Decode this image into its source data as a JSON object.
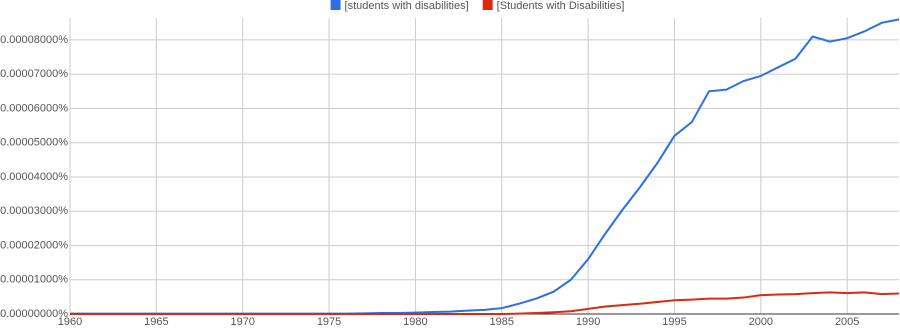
{
  "chart_data": {
    "type": "line",
    "x": [
      1960,
      1961,
      1962,
      1963,
      1964,
      1965,
      1966,
      1967,
      1968,
      1969,
      1970,
      1971,
      1972,
      1973,
      1974,
      1975,
      1976,
      1977,
      1978,
      1979,
      1980,
      1981,
      1982,
      1983,
      1984,
      1985,
      1986,
      1987,
      1988,
      1989,
      1990,
      1991,
      1992,
      1993,
      1994,
      1995,
      1996,
      1997,
      1998,
      1999,
      2000,
      2001,
      2002,
      2003,
      2004,
      2005,
      2006,
      2007,
      2008
    ],
    "series": [
      {
        "name": "[students with disabilities]",
        "color": "#2c6fe8",
        "values": [
          1e-07,
          1e-07,
          1e-07,
          1e-07,
          1e-07,
          1e-07,
          1e-07,
          1e-07,
          1e-07,
          1e-07,
          1e-07,
          1e-07,
          1e-07,
          1e-07,
          1e-07,
          1e-07,
          1e-07,
          2e-07,
          3e-07,
          3e-07,
          4e-07,
          6e-07,
          7e-07,
          1e-06,
          1.2e-06,
          1.7e-06,
          3e-06,
          4.5e-06,
          6.5e-06,
          1e-05,
          1.6e-05,
          2.35e-05,
          3.05e-05,
          3.7e-05,
          4.4e-05,
          5.2e-05,
          5.6e-05,
          6.5e-05,
          6.55e-05,
          6.8e-05,
          6.95e-05,
          7.2e-05,
          7.45e-05,
          8.1e-05,
          7.95e-05,
          8.05e-05,
          8.25e-05,
          8.5e-05,
          8.6e-05
        ]
      },
      {
        "name": "[Students with Disabilities]",
        "color": "#dc2a10",
        "values": [
          0,
          0,
          0,
          0,
          0,
          0,
          0,
          0,
          0,
          0,
          0,
          0,
          0,
          0,
          0,
          0,
          0,
          0,
          0,
          0,
          0,
          0,
          0,
          0,
          0,
          0,
          1e-07,
          3e-07,
          5e-07,
          8e-07,
          1.5e-06,
          2.2e-06,
          2.6e-06,
          3e-06,
          3.5e-06,
          4e-06,
          4.2e-06,
          4.5e-06,
          4.5e-06,
          4.8e-06,
          5.5e-06,
          5.7e-06,
          5.8e-06,
          6.1e-06,
          6.3e-06,
          6.1e-06,
          6.3e-06,
          5.8e-06,
          6e-06
        ]
      }
    ],
    "xlim": [
      1960,
      2008
    ],
    "xticks": [
      1960,
      1965,
      1970,
      1975,
      1980,
      1985,
      1990,
      1995,
      2000,
      2005
    ],
    "ylim": [
      0,
      8.64e-05
    ],
    "yticks": [
      {
        "value": 0,
        "label": "0.00000000%"
      },
      {
        "value": 1e-05,
        "label": "0.00001000%"
      },
      {
        "value": 2e-05,
        "label": "0.00002000%"
      },
      {
        "value": 3e-05,
        "label": "0.00003000%"
      },
      {
        "value": 4e-05,
        "label": "0.00004000%"
      },
      {
        "value": 5e-05,
        "label": "0.00005000%"
      },
      {
        "value": 6e-05,
        "label": "0.00006000%"
      },
      {
        "value": 7e-05,
        "label": "0.00007000%"
      },
      {
        "value": 8e-05,
        "label": "0.00008000%"
      }
    ],
    "grid": true,
    "legend": "top"
  }
}
